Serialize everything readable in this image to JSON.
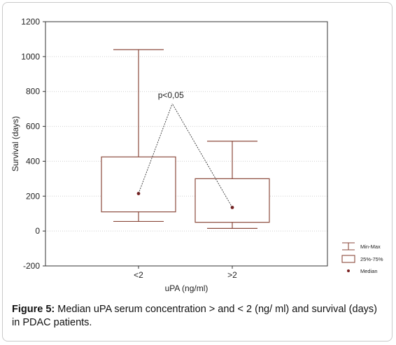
{
  "caption": {
    "label": "Figure 5:",
    "text": " Median uPA serum concentration > and < 2 (ng/ ml) and survival (days) in PDAC patients."
  },
  "chart_data": {
    "type": "boxplot",
    "xlabel": "uPA (ng/ml)",
    "ylabel": "Survival (days)",
    "ylim": [
      -200,
      1200
    ],
    "yticks": [
      -200,
      0,
      200,
      400,
      600,
      800,
      1000,
      1200
    ],
    "grid": true,
    "categories": [
      "<2",
      ">2"
    ],
    "boxes": [
      {
        "category": "<2",
        "min": 55,
        "q1": 110,
        "median": 215,
        "q3": 425,
        "max": 1040
      },
      {
        "category": ">2",
        "min": 15,
        "q1": 50,
        "median": 135,
        "q3": 300,
        "max": 515
      }
    ],
    "annotation": {
      "text": "p<0,05",
      "apex": {
        "x": 1.36,
        "y": 730
      }
    },
    "legend": {
      "placement": "bottom-right",
      "items": [
        {
          "symbol": "whisker",
          "label": "Min-Max"
        },
        {
          "symbol": "box",
          "label": "25%-75%"
        },
        {
          "symbol": "point",
          "label": "Median"
        }
      ]
    },
    "colors": {
      "box": "#8b4a3c",
      "marker": "#7a2020",
      "grid": "#cfcfcf",
      "axis": "#333333"
    }
  }
}
